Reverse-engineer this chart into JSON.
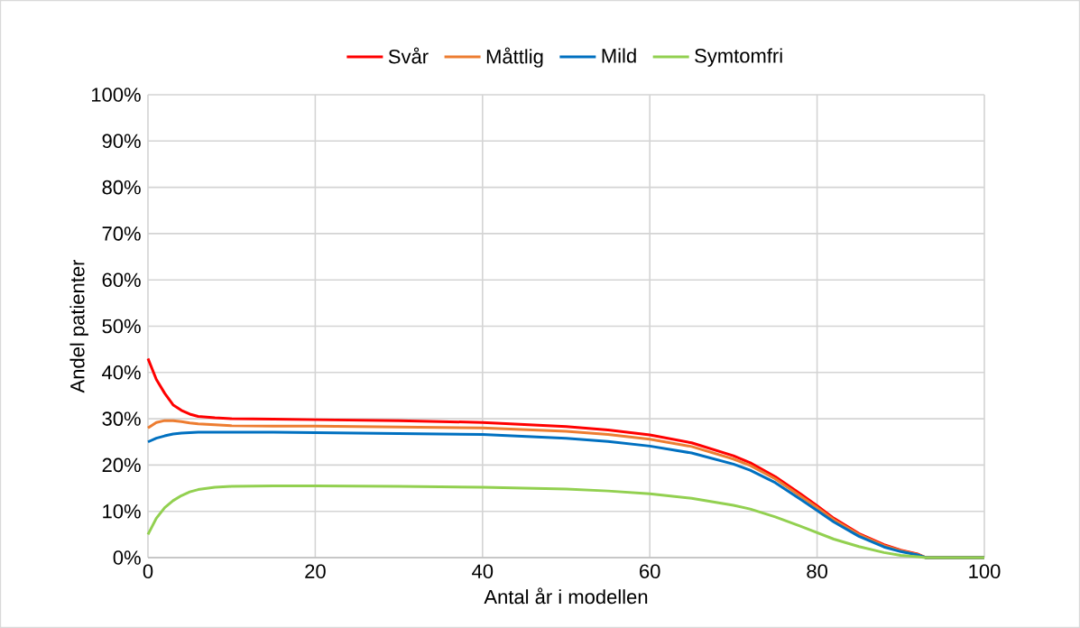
{
  "chart_data": {
    "type": "line",
    "xlabel": "Antal år i modellen",
    "ylabel": "Andel patienter",
    "x": [
      0,
      1,
      2,
      3,
      4,
      5,
      6,
      8,
      10,
      15,
      20,
      30,
      40,
      50,
      55,
      60,
      65,
      70,
      72,
      75,
      78,
      80,
      82,
      85,
      88,
      90,
      92,
      93,
      100
    ],
    "series": [
      {
        "name": "Svår",
        "color": "#ff0000",
        "values": [
          43,
          38.5,
          35.5,
          33,
          31.8,
          31,
          30.5,
          30.2,
          30,
          29.9,
          29.8,
          29.6,
          29.2,
          28.3,
          27.6,
          26.5,
          24.8,
          22,
          20.5,
          17.5,
          13.8,
          11.2,
          8.5,
          5.2,
          2.8,
          1.6,
          0.8,
          0,
          0
        ]
      },
      {
        "name": "Måttlig",
        "color": "#ed7d31",
        "values": [
          28,
          29.2,
          29.6,
          29.6,
          29.4,
          29.1,
          28.9,
          28.7,
          28.5,
          28.4,
          28.4,
          28.2,
          28,
          27.3,
          26.6,
          25.6,
          24,
          21.3,
          19.9,
          17,
          13.3,
          10.8,
          8.2,
          5,
          2.6,
          1.5,
          0.7,
          0,
          0
        ]
      },
      {
        "name": "Mild",
        "color": "#0070c0",
        "values": [
          25,
          25.8,
          26.3,
          26.7,
          26.9,
          27,
          27.1,
          27.1,
          27.1,
          27.1,
          27,
          26.8,
          26.6,
          25.8,
          25.1,
          24.1,
          22.6,
          20.2,
          18.9,
          16.2,
          12.6,
          10.2,
          7.7,
          4.6,
          2.3,
          1.3,
          0.6,
          0,
          0
        ]
      },
      {
        "name": "Symtomfri",
        "color": "#92d050",
        "values": [
          5,
          8.5,
          10.8,
          12.3,
          13.4,
          14.2,
          14.7,
          15.2,
          15.4,
          15.5,
          15.5,
          15.4,
          15.2,
          14.8,
          14.4,
          13.8,
          12.8,
          11.3,
          10.5,
          8.8,
          6.8,
          5.4,
          4,
          2.4,
          1.1,
          0.5,
          0.2,
          0,
          0
        ]
      }
    ],
    "xlim": [
      0,
      100
    ],
    "xticks": [
      0,
      20,
      40,
      60,
      80,
      100
    ],
    "ylim": [
      0,
      100
    ],
    "yticks": [
      {
        "value": 0,
        "label": "0%"
      },
      {
        "value": 10,
        "label": "10%"
      },
      {
        "value": 20,
        "label": "20%"
      },
      {
        "value": 30,
        "label": "30%"
      },
      {
        "value": 40,
        "label": "40%"
      },
      {
        "value": 50,
        "label": "50%"
      },
      {
        "value": 60,
        "label": "60%"
      },
      {
        "value": 70,
        "label": "70%"
      },
      {
        "value": 80,
        "label": "80%"
      },
      {
        "value": 90,
        "label": "90%"
      },
      {
        "value": 100,
        "label": "100%"
      }
    ],
    "grid": true,
    "legend": "top",
    "marker": "none",
    "line_style": "solid"
  }
}
